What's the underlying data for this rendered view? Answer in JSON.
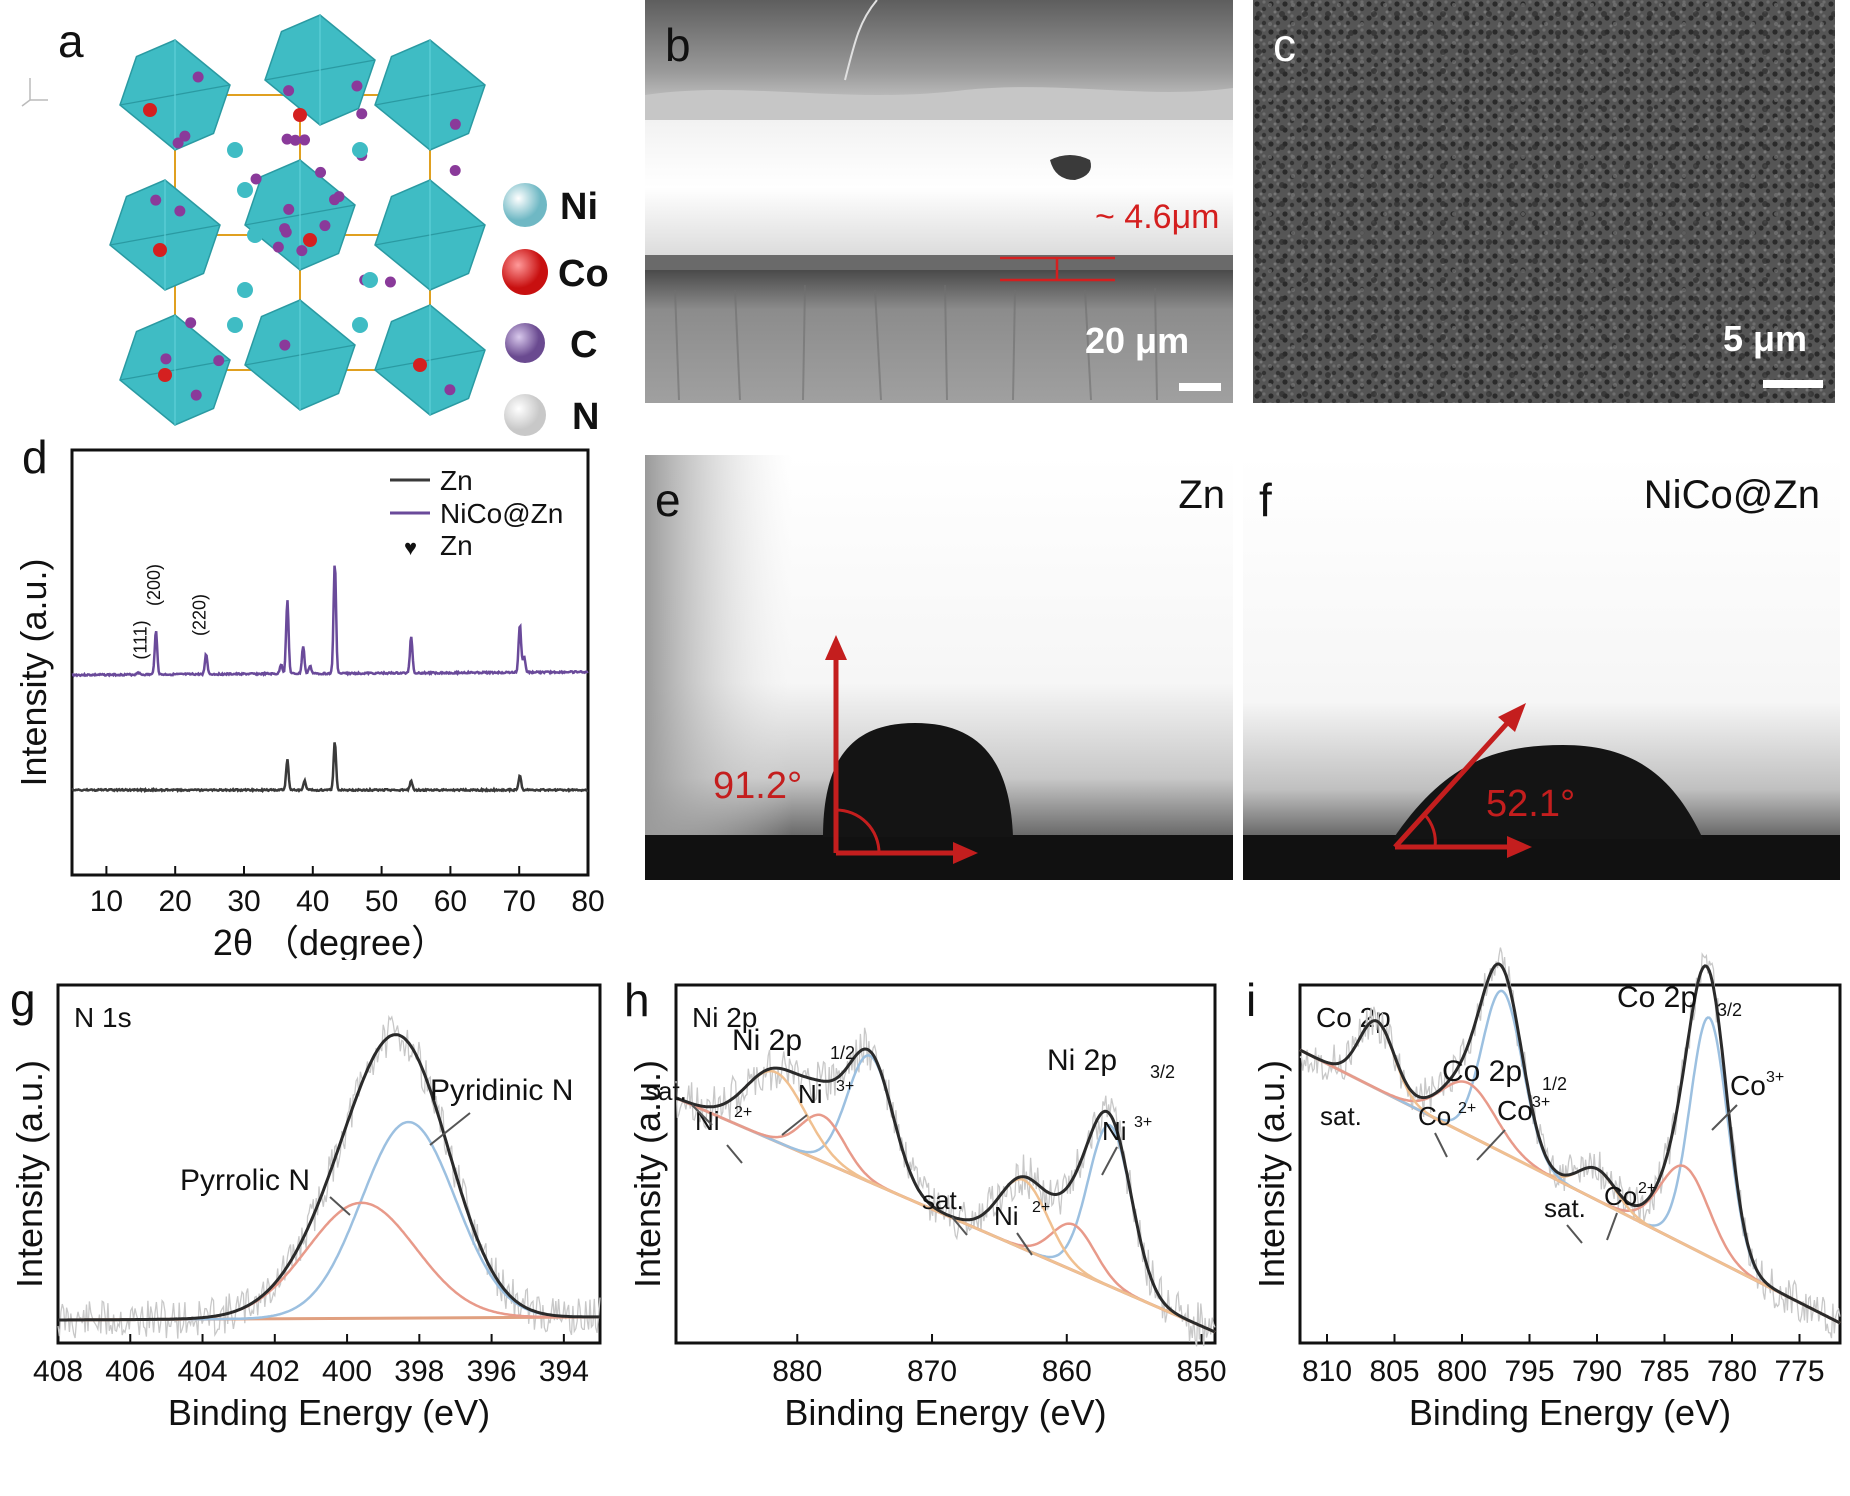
{
  "panels": {
    "a": {
      "label": "a",
      "legend": [
        "Ni",
        "Co",
        "C",
        "N"
      ],
      "legend_colors": [
        "#9ed6de",
        "#d82020",
        "#7a5a9a",
        "#e6e6e6"
      ],
      "octahedron_color": "#3fbcc4"
    },
    "b": {
      "label": "b",
      "thickness": "~ 4.6μm",
      "scale_bar": "20 μm"
    },
    "c": {
      "label": "c",
      "scale_bar": "5 μm"
    },
    "e": {
      "label": "e",
      "sample": "Zn",
      "angle": "91.2°"
    },
    "f": {
      "label": "f",
      "sample": "NiCo@Zn",
      "angle": "52.1°"
    }
  },
  "chart_data": [
    {
      "panel": "d",
      "type": "line",
      "xlabel": "2θ （degree）",
      "ylabel": "Intensity (a.u.)",
      "xlim": [
        5,
        80
      ],
      "xticks": [
        10,
        20,
        30,
        40,
        50,
        60,
        70,
        80
      ],
      "legend_position": "top-right",
      "legend": [
        "Zn",
        "NiCo@Zn",
        "Zn"
      ],
      "peak_labels": [
        "(111)",
        "(200)",
        "(220)"
      ],
      "series": [
        {
          "name": "NiCo@Zn",
          "color": "#6a4a9a",
          "peaks": [
            [
              14.6,
              0.03
            ],
            [
              17.2,
              0.55
            ],
            [
              24.5,
              0.25
            ],
            [
              35.4,
              0.12
            ],
            [
              36.3,
              0.92
            ],
            [
              38.6,
              0.34
            ],
            [
              39.6,
              0.1
            ],
            [
              43.2,
              1.38
            ],
            [
              54.3,
              0.46
            ],
            [
              70.1,
              0.6
            ],
            [
              70.7,
              0.2
            ]
          ]
        },
        {
          "name": "Zn",
          "color": "#3a3a3a",
          "peaks": [
            [
              36.3,
              0.38
            ],
            [
              38.8,
              0.12
            ],
            [
              43.2,
              0.6
            ],
            [
              54.3,
              0.12
            ],
            [
              70.1,
              0.18
            ]
          ]
        }
      ]
    },
    {
      "panel": "g",
      "type": "line",
      "title": "N 1s",
      "xlabel": "Binding Energy (eV)",
      "ylabel": "Intensity (a.u.)",
      "xlim": [
        408,
        393
      ],
      "xticks": [
        408,
        406,
        404,
        402,
        400,
        398,
        396,
        394
      ],
      "annotations": [
        "Pyridinic N",
        "Pyrrolic N"
      ],
      "series": [
        {
          "name": "Pyridinic N",
          "center": 398.3,
          "height": 0.56,
          "width": 1.3,
          "color": "#9cc0e0"
        },
        {
          "name": "Pyrrolic N",
          "center": 399.6,
          "height": 0.33,
          "width": 1.5,
          "color": "#e89a8a"
        }
      ]
    },
    {
      "panel": "h",
      "type": "line",
      "title": "Ni 2p",
      "xlabel": "Binding Energy (eV)",
      "ylabel": "Intensity (a.u.)",
      "xlim": [
        889,
        849
      ],
      "xticks": [
        880,
        870,
        860,
        850
      ],
      "annotations": [
        "Ni 2p",
        "1/2",
        "Ni 2p",
        "3/2",
        "sat.",
        "Ni",
        "2+",
        "Ni",
        "3+",
        "sat.",
        "Ni",
        "2+",
        "Ni",
        "3+"
      ],
      "series": [
        {
          "name": "Ni3+ 2p3/2",
          "center": 856.8,
          "height": 0.7,
          "width": 1.6,
          "color": "#9cc0e0"
        },
        {
          "name": "Ni2+ 2p3/2",
          "center": 859.5,
          "height": 0.2,
          "width": 1.6,
          "color": "#e89a8a"
        },
        {
          "name": "sat. 2p3/2",
          "center": 863.2,
          "height": 0.3,
          "width": 1.8,
          "color": "#f0c090"
        },
        {
          "name": "Ni3+ 2p1/2",
          "center": 874.6,
          "height": 0.55,
          "width": 1.7,
          "color": "#9cc0e0"
        },
        {
          "name": "Ni2+ 2p1/2",
          "center": 878.1,
          "height": 0.2,
          "width": 1.6,
          "color": "#e89a8a"
        },
        {
          "name": "sat. 2p1/2",
          "center": 881.6,
          "height": 0.3,
          "width": 2.2,
          "color": "#f0c090"
        }
      ]
    },
    {
      "panel": "i",
      "type": "line",
      "title": "Co 2p",
      "xlabel": "Binding Energy (eV)",
      "ylabel": "Intensity (a.u.)",
      "xlim": [
        812,
        772
      ],
      "xticks": [
        810,
        805,
        800,
        795,
        790,
        785,
        780,
        775
      ],
      "annotations": [
        "Co 2p",
        "3/2",
        "Co 2p",
        "1/2",
        "Co",
        "3+",
        "Co",
        "3+",
        "sat.",
        "Co",
        "2+",
        "sat.",
        "Co",
        "2+"
      ],
      "series": [
        {
          "name": "Co3+ 2p3/2",
          "center": 781.7,
          "height": 0.92,
          "width": 1.4,
          "color": "#9cc0e0"
        },
        {
          "name": "Co2+ 2p3/2",
          "center": 783.5,
          "height": 0.3,
          "width": 1.8,
          "color": "#e89a8a"
        },
        {
          "name": "sat. 2p3/2",
          "center": 790.0,
          "height": 0.12,
          "width": 1.4,
          "color": "#f0c090"
        },
        {
          "name": "Co3+ 2p1/2",
          "center": 797.0,
          "height": 0.62,
          "width": 1.5,
          "color": "#9cc0e0"
        },
        {
          "name": "Co2+ 2p1/2",
          "center": 799.5,
          "height": 0.2,
          "width": 2.0,
          "color": "#e89a8a"
        },
        {
          "name": "sat. 2p1/2",
          "center": 806.3,
          "height": 0.26,
          "width": 1.3,
          "color": "#f0c090"
        }
      ]
    }
  ]
}
